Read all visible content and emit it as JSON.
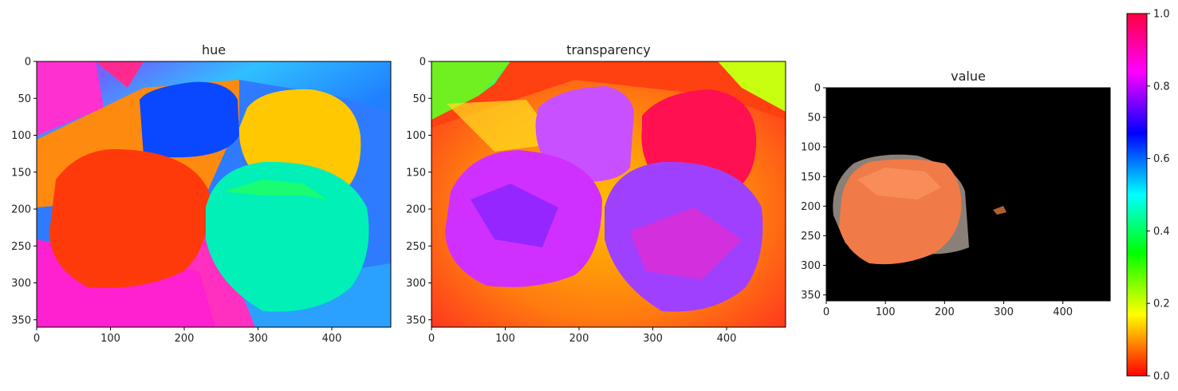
{
  "chart_data": [
    {
      "type": "heatmap",
      "title": "hue",
      "xlim": [
        0,
        480
      ],
      "ylim": [
        360,
        0
      ],
      "xticks": [
        0,
        100,
        200,
        300,
        400
      ],
      "yticks": [
        0,
        50,
        100,
        150,
        200,
        250,
        300,
        350
      ],
      "regions": [
        {
          "label": "blue bag",
          "hue": 0.65
        },
        {
          "label": "yellow bag",
          "hue": 0.17
        },
        {
          "label": "red bag",
          "hue": 0.04
        },
        {
          "label": "teal bag",
          "hue": 0.47
        },
        {
          "label": "floor",
          "hue": 0.07
        },
        {
          "label": "wall",
          "hue": 0.58
        },
        {
          "label": "wall",
          "hue": 0.86
        }
      ]
    },
    {
      "type": "heatmap",
      "title": "transparency",
      "xlim": [
        0,
        480
      ],
      "ylim": [
        360,
        0
      ],
      "xticks": [
        0,
        100,
        200,
        300,
        400
      ],
      "yticks": [
        0,
        50,
        100,
        150,
        200,
        250,
        300,
        350
      ],
      "regions": [
        {
          "label": "bag top left",
          "hue": 0.83
        },
        {
          "label": "bag top right",
          "hue": 0.98
        },
        {
          "label": "bag bottom left",
          "hue": 0.82
        },
        {
          "label": "bag bottom right",
          "hue": 0.78
        },
        {
          "label": "floor",
          "hue": 0.1
        },
        {
          "label": "wall",
          "hue": 0.3
        }
      ]
    },
    {
      "type": "heatmap",
      "title": "value",
      "xlim": [
        0,
        480
      ],
      "ylim": [
        360,
        0
      ],
      "xticks": [
        0,
        100,
        200,
        300,
        400
      ],
      "yticks": [
        0,
        50,
        100,
        150,
        200,
        250,
        300,
        350
      ],
      "regions": [
        {
          "label": "masked bag",
          "color": "#f0784a"
        },
        {
          "label": "background",
          "color": "#000000"
        }
      ]
    }
  ],
  "colorbar": {
    "colormap": "gist_rainbow_r",
    "range": [
      0.0,
      1.0
    ],
    "ticks": [
      0.0,
      0.2,
      0.4,
      0.6,
      0.8,
      1.0
    ],
    "tick_labels": [
      "0.0",
      "0.2",
      "0.4",
      "0.6",
      "0.8",
      "1.0"
    ]
  }
}
